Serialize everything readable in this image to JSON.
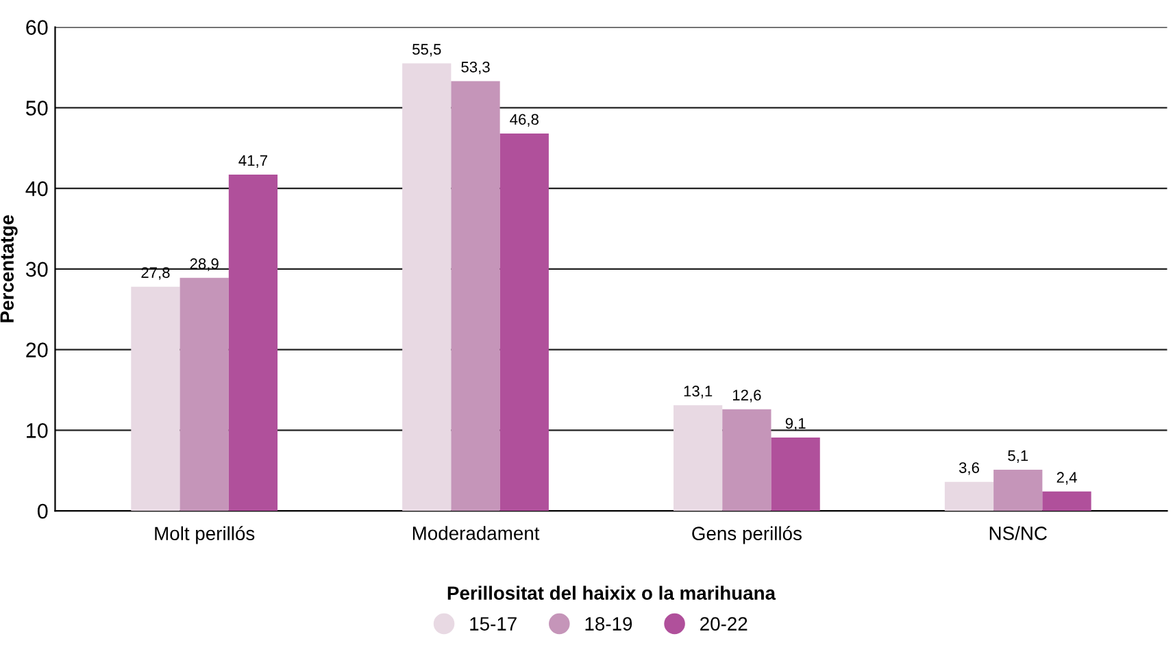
{
  "chart_data": {
    "type": "bar",
    "xlabel": "Perillositat del haixix o la marihuana",
    "ylabel": "Percentatge",
    "categories": [
      "Molt perillós",
      "Moderadament",
      "Gens perillós",
      "NS/NC"
    ],
    "series": [
      {
        "name": "15-17",
        "color": "#e8d9e3",
        "values": [
          27.8,
          55.5,
          13.1,
          3.6
        ],
        "value_labels": [
          "27,8",
          "55,5",
          "13,1",
          "3,6"
        ]
      },
      {
        "name": "18-19",
        "color": "#c595b9",
        "values": [
          28.9,
          53.3,
          12.6,
          5.1
        ],
        "value_labels": [
          "28,9",
          "53,3",
          "12,6",
          "5,1"
        ]
      },
      {
        "name": "20-22",
        "color": "#b0509b",
        "values": [
          41.7,
          46.8,
          9.1,
          2.4
        ],
        "value_labels": [
          "41,7",
          "46,8",
          "9,1",
          "2,4"
        ]
      }
    ],
    "ylim": [
      0,
      60
    ],
    "yticks": [
      0,
      10,
      20,
      30,
      40,
      50,
      60
    ],
    "grid": "y",
    "legend": "bottom"
  }
}
